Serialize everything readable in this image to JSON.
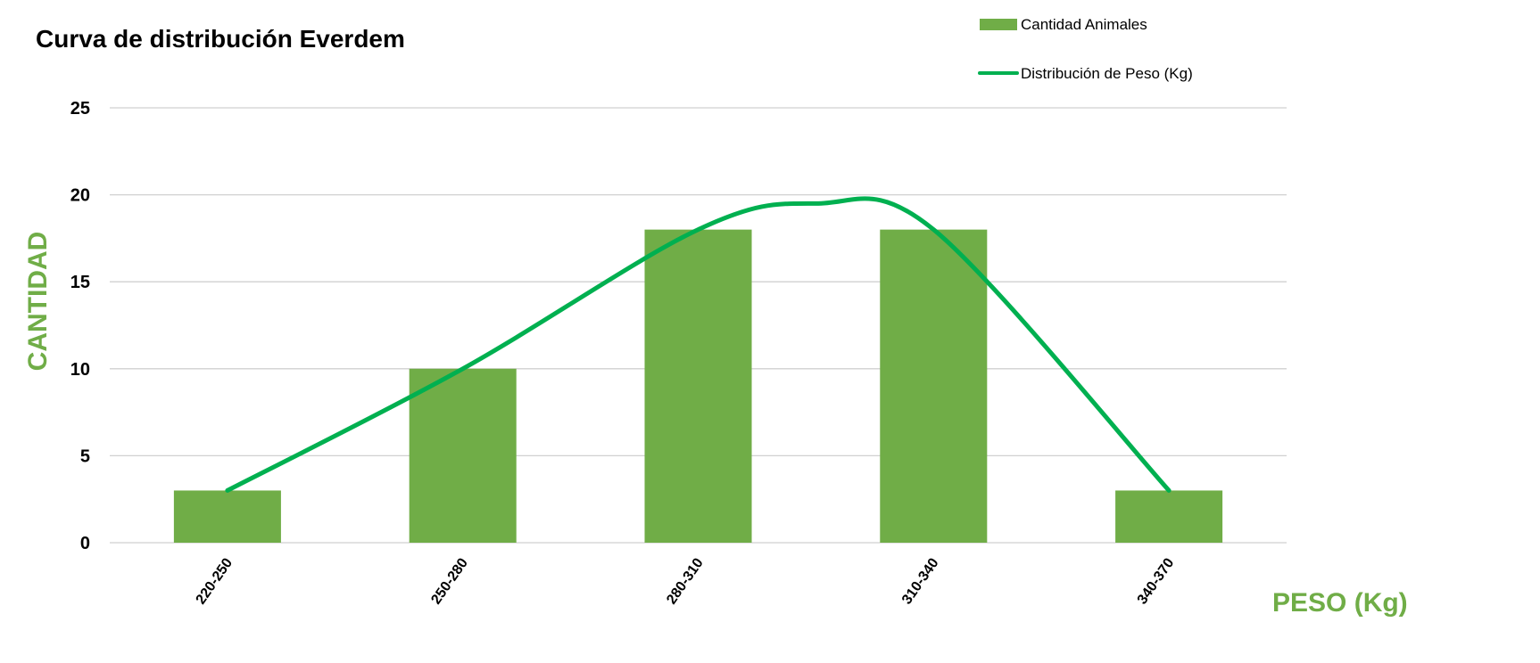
{
  "chart_data": {
    "type": "bar",
    "title": "Curva de distribución Everdem",
    "categories": [
      "220-250",
      "250-280",
      "280-310",
      "310-340",
      "340-370"
    ],
    "series": [
      {
        "name": "Cantidad Animales",
        "kind": "bar",
        "values": [
          3,
          10,
          18,
          18,
          3
        ],
        "color": "#70AD47"
      }
    ],
    "curve": {
      "name": "Distribución de Peso (Kg)",
      "kind": "line",
      "smooth": true,
      "values": [
        3,
        10,
        18,
        18,
        3
      ],
      "peak": {
        "x": 2.5,
        "y": 19.5
      },
      "color": "#00B050"
    },
    "xlabel": "PESO (Kg)",
    "ylabel": "CANTIDAD",
    "ylim": [
      0,
      25
    ],
    "yticks": [
      0,
      5,
      10,
      15,
      20,
      25
    ],
    "grid": true,
    "legend_position": "top-right",
    "axis_title_color": "#70AD47"
  }
}
